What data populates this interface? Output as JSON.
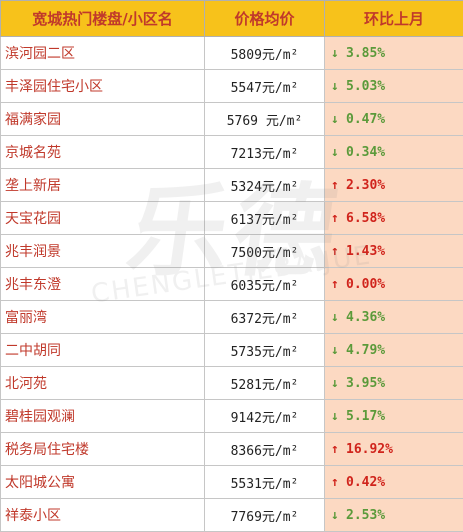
{
  "header": {
    "col_name": "宽城热门楼盘/小区名",
    "col_price": "价格均价",
    "col_change": "环比上月"
  },
  "rows": [
    {
      "name": "滨河园二区",
      "price": "5809元/m²",
      "change": "3.85%",
      "direction": "down"
    },
    {
      "name": "丰泽园住宅小区",
      "price": "5547元/m²",
      "change": "5.03%",
      "direction": "down"
    },
    {
      "name": "福满家园",
      "price": "5769 元/m²",
      "change": "0.47%",
      "direction": "down"
    },
    {
      "name": "京城名苑",
      "price": "7213元/m²",
      "change": "0.34%",
      "direction": "down"
    },
    {
      "name": "垄上新居",
      "price": "5324元/m²",
      "change": "2.30%",
      "direction": "up"
    },
    {
      "name": "天宝花园",
      "price": "6137元/m²",
      "change": "6.58%",
      "direction": "up"
    },
    {
      "name": "兆丰润景",
      "price": "7500元/m²",
      "change": "1.43%",
      "direction": "up"
    },
    {
      "name": "兆丰东澄",
      "price": "6035元/m²",
      "change": "0.00%",
      "direction": "up"
    },
    {
      "name": "富丽湾",
      "price": "6372元/m²",
      "change": "4.36%",
      "direction": "down"
    },
    {
      "name": "二中胡同",
      "price": "5735元/m²",
      "change": "4.79%",
      "direction": "down"
    },
    {
      "name": "北河苑",
      "price": "5281元/m²",
      "change": "3.95%",
      "direction": "down"
    },
    {
      "name": "碧桂园观澜",
      "price": "9142元/m²",
      "change": "5.17%",
      "direction": "down"
    },
    {
      "name": "税务局住宅楼",
      "price": "8366元/m²",
      "change": "16.92%",
      "direction": "up"
    },
    {
      "name": "太阳城公寓",
      "price": "5531元/m²",
      "change": "0.42%",
      "direction": "up"
    },
    {
      "name": "祥泰小区",
      "price": "7769元/m²",
      "change": "2.53%",
      "direction": "down"
    }
  ],
  "watermark": {
    "mark": "乐德",
    "text": "CHENGLETIEBAIJUE"
  },
  "colors": {
    "header_bg": "#f7c21b",
    "header_text": "#c0392b",
    "name_text": "#c0392b",
    "change_bg": "#fcd9c2",
    "up": "#d0241c",
    "down": "#5b9a3a"
  }
}
